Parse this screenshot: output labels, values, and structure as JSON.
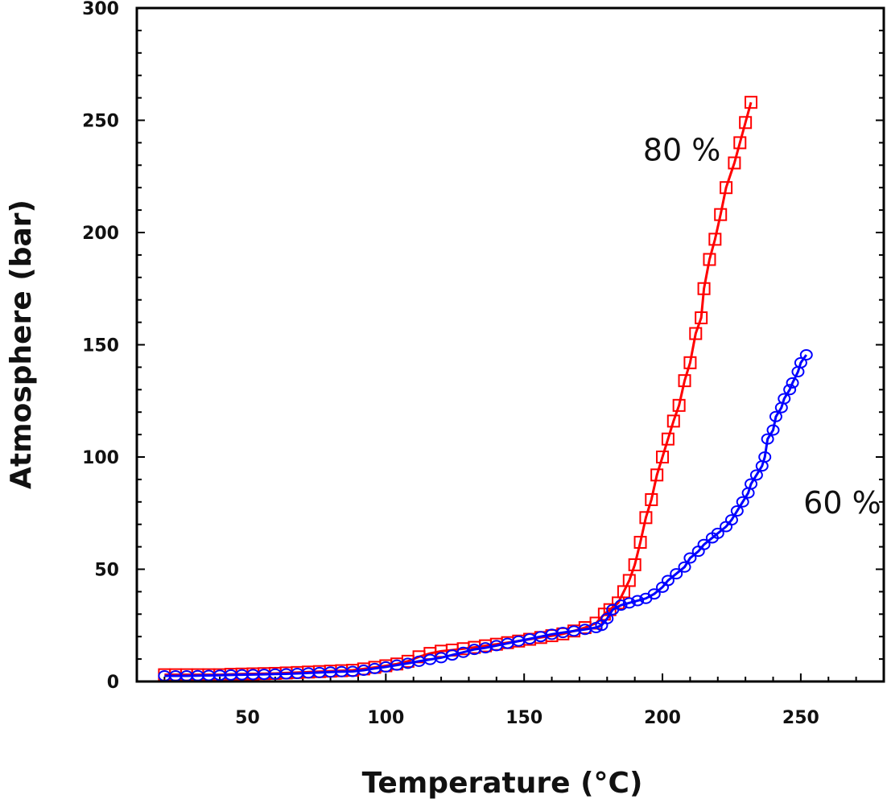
{
  "chart_data": {
    "type": "line",
    "title": "",
    "xlabel": "Temperature (°C)",
    "ylabel": "Atmosphere (bar)",
    "xlim": [
      10,
      280
    ],
    "ylim": [
      0,
      300
    ],
    "xticks": [
      50,
      100,
      150,
      200,
      250
    ],
    "yticks": [
      0,
      50,
      100,
      150,
      200,
      250,
      300
    ],
    "grid": false,
    "series": [
      {
        "name": "80 %",
        "color": "#ff0000",
        "marker": "square",
        "x": [
          20,
          24,
          28,
          32,
          36,
          40,
          44,
          48,
          52,
          56,
          60,
          64,
          68,
          72,
          76,
          80,
          84,
          88,
          92,
          96,
          100,
          104,
          108,
          112,
          116,
          120,
          124,
          128,
          132,
          136,
          140,
          144,
          148,
          152,
          156,
          160,
          164,
          168,
          172,
          176,
          179,
          181,
          184,
          186,
          188,
          190,
          192,
          194,
          196,
          198,
          200,
          202,
          204,
          206,
          208,
          210,
          212,
          214,
          215,
          217,
          219,
          221,
          223,
          226,
          228,
          230,
          232
        ],
        "y": [
          3,
          3,
          3,
          3,
          3,
          3,
          3.2,
          3.3,
          3.4,
          3.5,
          3.6,
          3.8,
          4,
          4.2,
          4.4,
          4.6,
          4.8,
          5,
          5.6,
          6.3,
          7,
          7.8,
          9,
          11,
          12.5,
          13.5,
          14,
          14.6,
          15.2,
          15.9,
          16.6,
          17.3,
          18,
          18.8,
          19.6,
          20.4,
          21.2,
          22.5,
          24,
          26,
          30,
          32,
          35,
          40,
          45,
          52,
          62,
          73,
          81,
          92,
          100,
          108,
          116,
          123,
          134,
          142,
          155,
          162,
          175,
          188,
          197,
          208,
          220,
          231,
          240,
          249,
          258
        ]
      },
      {
        "name": "60 %",
        "color": "#0000ff",
        "marker": "circle",
        "x": [
          20,
          24,
          28,
          32,
          36,
          40,
          44,
          48,
          52,
          56,
          60,
          64,
          68,
          72,
          76,
          80,
          84,
          88,
          92,
          96,
          100,
          104,
          108,
          112,
          116,
          120,
          124,
          128,
          132,
          136,
          140,
          144,
          148,
          152,
          156,
          160,
          164,
          168,
          172,
          176,
          178,
          180,
          182,
          185,
          188,
          191,
          194,
          197,
          200,
          202,
          205,
          208,
          210,
          213,
          215,
          218,
          220,
          223,
          225,
          227,
          229,
          231,
          232,
          234,
          236,
          237,
          238,
          240,
          241,
          243,
          244,
          246,
          247,
          249,
          250,
          252
        ],
        "y": [
          2.5,
          2.5,
          2.5,
          2.6,
          2.7,
          2.8,
          2.9,
          3,
          3.1,
          3.2,
          3.3,
          3.4,
          3.6,
          3.8,
          4,
          4.2,
          4.4,
          4.5,
          5,
          5.8,
          6.5,
          7.3,
          8.1,
          9,
          9.8,
          10.6,
          11.8,
          13,
          14.3,
          15,
          16,
          17,
          18,
          19,
          20,
          21,
          21.8,
          22.5,
          23.2,
          24,
          25,
          28,
          32,
          34,
          35,
          36,
          37,
          39,
          42,
          45,
          48,
          51,
          55,
          58,
          61,
          64,
          66,
          69,
          72,
          76,
          80,
          84,
          88,
          92,
          96,
          100,
          108,
          112,
          118,
          122,
          126,
          130,
          133,
          138,
          142,
          145.5
        ]
      }
    ],
    "annotations": [
      {
        "text": "80 %",
        "x": 207,
        "y": 232
      },
      {
        "text": "60 %",
        "x": 265,
        "y": 75
      }
    ]
  }
}
